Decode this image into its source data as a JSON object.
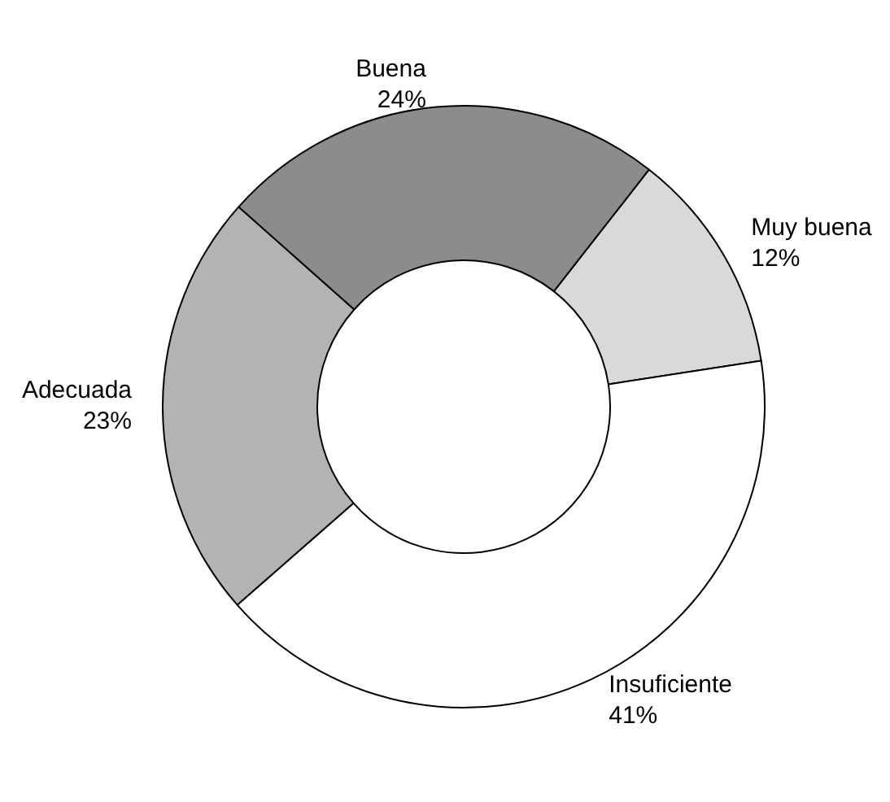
{
  "chart_data": {
    "type": "donut",
    "categories": [
      "Muy buena",
      "Insuficiente",
      "Adecuada",
      "Buena"
    ],
    "values": [
      12,
      41,
      23,
      24
    ],
    "colors": [
      "#d9d9d9",
      "#ffffff",
      "#b3b3b3",
      "#8c8c8c"
    ],
    "value_labels": [
      "12%",
      "41%",
      "23%",
      "24%"
    ],
    "legend": false
  }
}
